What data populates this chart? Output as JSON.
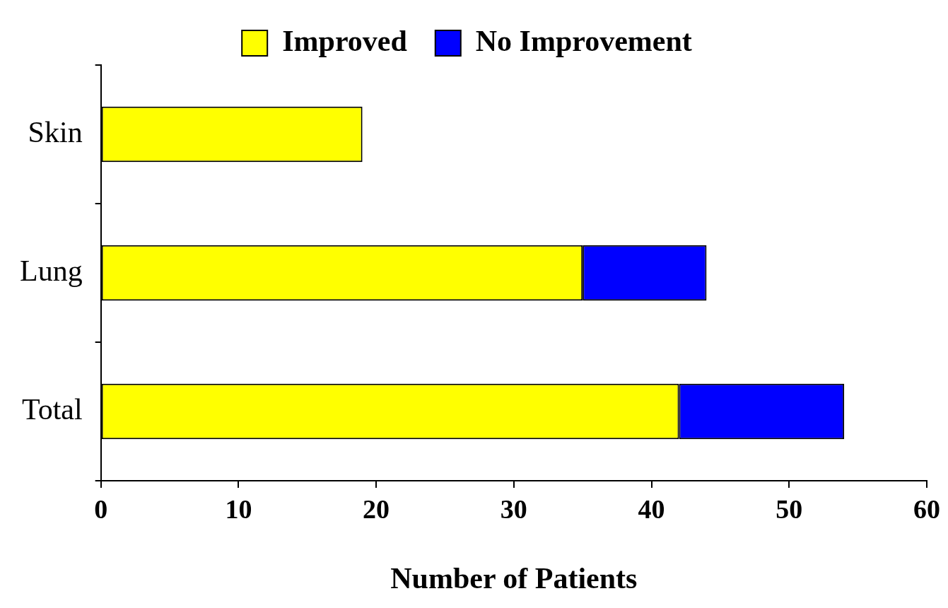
{
  "chart_data": {
    "type": "bar",
    "orientation": "horizontal",
    "stacked": true,
    "categories": [
      "Skin",
      "Lung",
      "Total"
    ],
    "series": [
      {
        "name": "Improved",
        "color": "#ffff00",
        "values": [
          19,
          35,
          42
        ]
      },
      {
        "name": "No Improvement",
        "color": "#0000ff",
        "values": [
          0,
          9,
          12
        ]
      }
    ],
    "xlabel": "Number of Patients",
    "xlim": [
      0,
      60
    ],
    "xticks": [
      0,
      10,
      20,
      30,
      40,
      50,
      60
    ],
    "grid": false,
    "legend": "top"
  }
}
